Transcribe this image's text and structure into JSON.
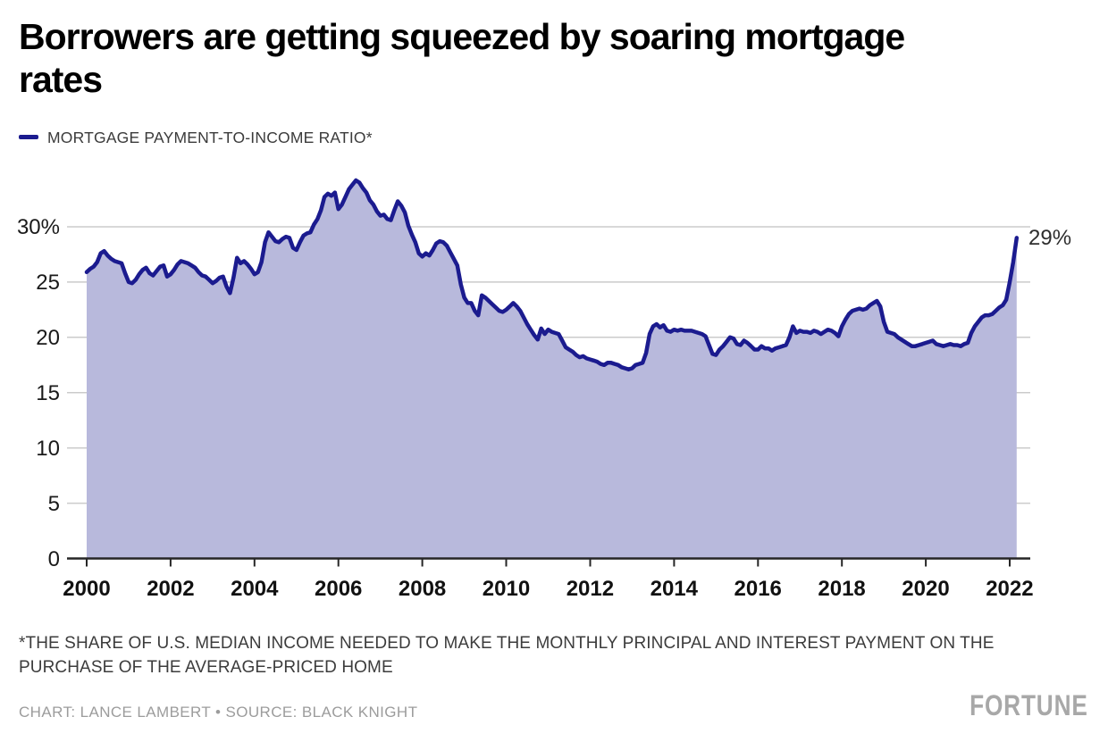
{
  "title_line1": "Borrowers are getting squeezed by soaring mortgage",
  "title_line2": "rates",
  "legend": {
    "label": "MORTGAGE PAYMENT-TO-INCOME RATIO*",
    "swatch_color": "#1b1b8f"
  },
  "footnote": "*THE SHARE OF U.S. MEDIAN INCOME NEEDED TO MAKE THE MONTHLY PRINCIPAL AND INTEREST PAYMENT ON THE PURCHASE OF THE AVERAGE-PRICED HOME",
  "credit": "CHART: LANCE LAMBERT • SOURCE: BLACK KNIGHT",
  "brand": "FORTUNE",
  "chart_data": {
    "type": "area",
    "title": "Mortgage payment-to-income ratio, 2000–2022",
    "grid": true,
    "legend_position": "top-left",
    "line_color": "#1b1b8f",
    "fill_color": "#b8b9dc",
    "grid_color": "#cbcbcb",
    "axis_color": "#262626",
    "end_label": "29%",
    "end_value": 29,
    "ylim": [
      0,
      35
    ],
    "xlim": [
      2000,
      2022.25
    ],
    "y_ticks": {
      "labels": [
        "30%",
        "25",
        "20",
        "15",
        "10",
        "5",
        "0"
      ],
      "values": [
        30,
        25,
        20,
        15,
        10,
        5,
        0
      ]
    },
    "x_ticks": {
      "labels": [
        "2000",
        "2002",
        "2004",
        "2006",
        "2008",
        "2010",
        "2012",
        "2014",
        "2016",
        "2018",
        "2020",
        "2022"
      ],
      "years": [
        2000,
        2002,
        2004,
        2006,
        2008,
        2010,
        2012,
        2014,
        2016,
        2018,
        2020,
        2022
      ]
    },
    "series": [
      {
        "name": "MORTGAGE PAYMENT-TO-INCOME RATIO*",
        "frequency": "monthly",
        "start_year": 2000,
        "start_month": 1,
        "unit": "%",
        "values": [
          25.9,
          26.2,
          26.4,
          26.8,
          27.6,
          27.8,
          27.4,
          27.1,
          26.9,
          26.8,
          26.7,
          25.8,
          25.0,
          24.9,
          25.2,
          25.7,
          26.1,
          26.3,
          25.8,
          25.6,
          26.0,
          26.4,
          26.5,
          25.5,
          25.7,
          26.1,
          26.6,
          26.9,
          26.8,
          26.7,
          26.5,
          26.3,
          25.9,
          25.6,
          25.5,
          25.2,
          24.9,
          25.1,
          25.4,
          25.5,
          24.6,
          24.0,
          25.4,
          27.2,
          26.7,
          26.9,
          26.6,
          26.2,
          25.7,
          25.9,
          26.8,
          28.6,
          29.5,
          29.1,
          28.7,
          28.6,
          28.9,
          29.1,
          29.0,
          28.1,
          27.9,
          28.6,
          29.2,
          29.4,
          29.5,
          30.2,
          30.7,
          31.5,
          32.7,
          33.0,
          32.8,
          33.1,
          31.6,
          32.0,
          32.7,
          33.4,
          33.8,
          34.2,
          34.0,
          33.5,
          33.1,
          32.4,
          32.0,
          31.4,
          31.0,
          31.1,
          30.7,
          30.6,
          31.5,
          32.3,
          31.9,
          31.3,
          30.1,
          29.3,
          28.6,
          27.6,
          27.3,
          27.6,
          27.4,
          27.9,
          28.5,
          28.7,
          28.6,
          28.3,
          27.7,
          27.1,
          26.5,
          24.8,
          23.6,
          23.1,
          23.1,
          22.4,
          22.0,
          23.8,
          23.6,
          23.3,
          23.0,
          22.7,
          22.4,
          22.3,
          22.5,
          22.8,
          23.1,
          22.8,
          22.4,
          21.8,
          21.2,
          20.7,
          20.2,
          19.8,
          20.8,
          20.3,
          20.7,
          20.5,
          20.4,
          20.3,
          19.7,
          19.1,
          18.9,
          18.7,
          18.4,
          18.2,
          18.3,
          18.1,
          18.0,
          17.9,
          17.8,
          17.6,
          17.5,
          17.7,
          17.7,
          17.6,
          17.5,
          17.3,
          17.2,
          17.1,
          17.2,
          17.5,
          17.6,
          17.7,
          18.6,
          20.3,
          21.0,
          21.2,
          20.9,
          21.1,
          20.6,
          20.5,
          20.7,
          20.6,
          20.7,
          20.6,
          20.6,
          20.6,
          20.5,
          20.4,
          20.3,
          20.1,
          19.3,
          18.5,
          18.4,
          18.9,
          19.2,
          19.6,
          20.0,
          19.9,
          19.4,
          19.3,
          19.7,
          19.5,
          19.2,
          18.9,
          18.9,
          19.2,
          19.0,
          19.0,
          18.8,
          19.0,
          19.1,
          19.2,
          19.3,
          20.0,
          21.0,
          20.4,
          20.6,
          20.5,
          20.5,
          20.4,
          20.6,
          20.5,
          20.3,
          20.5,
          20.7,
          20.6,
          20.4,
          20.1,
          21.0,
          21.6,
          22.1,
          22.4,
          22.5,
          22.6,
          22.5,
          22.6,
          22.9,
          23.1,
          23.3,
          22.8,
          21.4,
          20.5,
          20.4,
          20.3,
          20.0,
          19.8,
          19.6,
          19.4,
          19.2,
          19.2,
          19.3,
          19.4,
          19.5,
          19.6,
          19.7,
          19.4,
          19.3,
          19.2,
          19.3,
          19.4,
          19.3,
          19.3,
          19.2,
          19.4,
          19.5,
          20.4,
          21.0,
          21.4,
          21.8,
          22.0,
          22.0,
          22.1,
          22.4,
          22.7,
          22.9,
          23.4,
          25.0,
          26.8,
          29.0
        ]
      }
    ]
  }
}
